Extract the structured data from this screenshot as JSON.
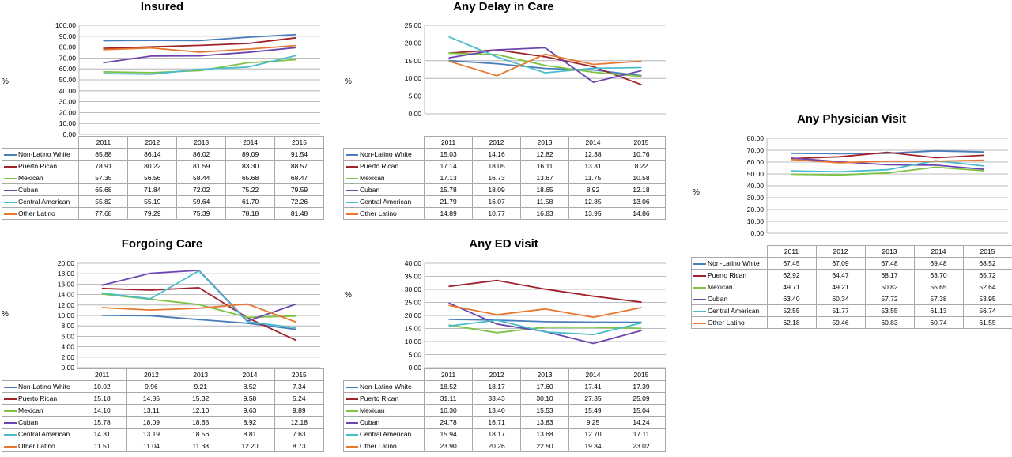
{
  "colors": {
    "Non-Latino White": "#4a7ebb",
    "Puerto Rican": "#a0232b",
    "Mexican": "#7dc242",
    "Cuban": "#6b45b0",
    "Central American": "#4bbccc",
    "Other Latino": "#e8772e"
  },
  "chart_data": [
    {
      "id": "insured",
      "type": "line",
      "title": "Insured",
      "ylabel": "%",
      "categories": [
        "2011",
        "2012",
        "2013",
        "2014",
        "2015"
      ],
      "ylim": [
        0,
        100
      ],
      "ystep": 10,
      "yticks": [
        "0.00",
        "10.00",
        "20.00",
        "30.00",
        "40.00",
        "50.00",
        "60.00",
        "70.00",
        "80.00",
        "90.00",
        "100.00"
      ],
      "series": [
        {
          "name": "Non-Latino White",
          "values": [
            85.88,
            86.14,
            86.02,
            89.09,
            91.54
          ],
          "labels": [
            "85.88",
            "86.14",
            "86.02",
            "89.09",
            "91.54"
          ]
        },
        {
          "name": "Puerto Rican",
          "values": [
            78.91,
            80.22,
            81.59,
            83.3,
            88.57
          ],
          "labels": [
            "78.91",
            "80.22",
            "81.59",
            "83.30",
            "88.57"
          ]
        },
        {
          "name": "Mexican",
          "values": [
            57.35,
            56.56,
            58.44,
            65.68,
            68.47
          ],
          "labels": [
            "57.35",
            "56.56",
            "58.44",
            "65.68",
            "68.47"
          ]
        },
        {
          "name": "Cuban",
          "values": [
            65.68,
            71.84,
            72.02,
            75.22,
            79.59
          ],
          "labels": [
            "65.68",
            "71.84",
            "72.02",
            "75.22",
            "79.59"
          ]
        },
        {
          "name": "Central American",
          "values": [
            55.82,
            55.19,
            59.64,
            61.7,
            72.26
          ],
          "labels": [
            "55.82",
            "55.19",
            "59.64",
            "61.70",
            "72.26"
          ]
        },
        {
          "name": "Other Latino",
          "values": [
            77.68,
            79.29,
            75.39,
            78.18,
            81.48
          ],
          "labels": [
            "77.68",
            "79.29",
            "75.39",
            "78.18",
            "81.48"
          ]
        }
      ]
    },
    {
      "id": "delay",
      "type": "line",
      "title": "Any Delay in Care",
      "ylabel": "%",
      "categories": [
        "2011",
        "2012",
        "2013",
        "2014",
        "2015"
      ],
      "ylim": [
        0,
        25
      ],
      "ystep": 5,
      "yticks": [
        "0.00",
        "5.00",
        "10.00",
        "15.00",
        "20.00",
        "25.00"
      ],
      "series": [
        {
          "name": "Non-Latino White",
          "values": [
            15.03,
            14.16,
            12.82,
            12.38,
            10.76
          ],
          "labels": [
            "15.03",
            "14.16",
            "12.82",
            "12.38",
            "10.76"
          ]
        },
        {
          "name": "Puerto Rican",
          "values": [
            17.14,
            18.05,
            16.11,
            13.31,
            8.22
          ],
          "labels": [
            "17.14",
            "18.05",
            "16.11",
            "13.31",
            "8.22"
          ]
        },
        {
          "name": "Mexican",
          "values": [
            17.13,
            16.73,
            13.67,
            11.75,
            10.58
          ],
          "labels": [
            "17.13",
            "16.73",
            "13.67",
            "11.75",
            "10.58"
          ]
        },
        {
          "name": "Cuban",
          "values": [
            15.78,
            18.09,
            18.65,
            8.92,
            12.18
          ],
          "labels": [
            "15.78",
            "18.09",
            "18.65",
            "8.92",
            "12.18"
          ]
        },
        {
          "name": "Central American",
          "values": [
            21.79,
            16.07,
            11.58,
            12.85,
            13.06
          ],
          "labels": [
            "21.79",
            "16.07",
            "11.58",
            "12.85",
            "13.06"
          ]
        },
        {
          "name": "Other Latino",
          "values": [
            14.89,
            10.77,
            16.83,
            13.95,
            14.86
          ],
          "labels": [
            "14.89",
            "10.77",
            "16.83",
            "13.95",
            "14.86"
          ]
        }
      ]
    },
    {
      "id": "physician",
      "type": "line",
      "title": "Any Physician Visit",
      "ylabel": "%",
      "categories": [
        "2011",
        "2012",
        "2013",
        "2014",
        "2015"
      ],
      "ylim": [
        0,
        80
      ],
      "ystep": 10,
      "yticks": [
        "0.00",
        "10.00",
        "20.00",
        "30.00",
        "40.00",
        "50.00",
        "60.00",
        "70.00",
        "80.00"
      ],
      "series": [
        {
          "name": "Non-Latino White",
          "values": [
            67.45,
            67.09,
            67.48,
            69.48,
            68.52
          ],
          "labels": [
            "67.45",
            "67.09",
            "67.48",
            "69.48",
            "68.52"
          ]
        },
        {
          "name": "Puerto Rican",
          "values": [
            62.92,
            64.47,
            68.17,
            63.7,
            65.72
          ],
          "labels": [
            "62.92",
            "64.47",
            "68.17",
            "63.70",
            "65.72"
          ]
        },
        {
          "name": "Mexican",
          "values": [
            49.71,
            49.21,
            50.82,
            55.65,
            52.64
          ],
          "labels": [
            "49.71",
            "49.21",
            "50.82",
            "55.65",
            "52.64"
          ]
        },
        {
          "name": "Cuban",
          "values": [
            63.4,
            60.34,
            57.72,
            57.38,
            53.95
          ],
          "labels": [
            "63.40",
            "60.34",
            "57.72",
            "57.38",
            "53.95"
          ]
        },
        {
          "name": "Central American",
          "values": [
            52.55,
            51.77,
            53.55,
            61.13,
            56.74
          ],
          "labels": [
            "52.55",
            "51.77",
            "53.55",
            "61.13",
            "56.74"
          ]
        },
        {
          "name": "Other Latino",
          "values": [
            62.18,
            59.46,
            60.83,
            60.74,
            61.55
          ],
          "labels": [
            "62.18",
            "59.46",
            "60.83",
            "60.74",
            "61.55"
          ]
        }
      ]
    },
    {
      "id": "forgoing",
      "type": "line",
      "title": "Forgoing Care",
      "ylabel": "%",
      "categories": [
        "2011",
        "2012",
        "2013",
        "2014",
        "2015"
      ],
      "ylim": [
        0,
        20
      ],
      "ystep": 2,
      "yticks": [
        "0.00",
        "2.00",
        "4.00",
        "6.00",
        "8.00",
        "10.00",
        "12.00",
        "14.00",
        "16.00",
        "18.00",
        "20.00"
      ],
      "series": [
        {
          "name": "Non-Latino White",
          "values": [
            10.02,
            9.96,
            9.21,
            8.52,
            7.34
          ],
          "labels": [
            "10.02",
            "9.96",
            "9.21",
            "8.52",
            "7.34"
          ]
        },
        {
          "name": "Puerto Rican",
          "values": [
            15.18,
            14.85,
            15.32,
            9.58,
            5.24
          ],
          "labels": [
            "15.18",
            "14.85",
            "15.32",
            "9.58",
            "5.24"
          ]
        },
        {
          "name": "Mexican",
          "values": [
            14.1,
            13.11,
            12.1,
            9.63,
            9.89
          ],
          "labels": [
            "14.10",
            "13.11",
            "12.10",
            "9.63",
            "9.89"
          ]
        },
        {
          "name": "Cuban",
          "values": [
            15.78,
            18.09,
            18.65,
            8.92,
            12.18
          ],
          "labels": [
            "15.78",
            "18.09",
            "18.65",
            "8.92",
            "12.18"
          ]
        },
        {
          "name": "Central American",
          "values": [
            14.31,
            13.19,
            18.56,
            8.81,
            7.63
          ],
          "labels": [
            "14.31",
            "13.19",
            "18.56",
            "8.81",
            "7.63"
          ]
        },
        {
          "name": "Other Latino",
          "values": [
            11.51,
            11.04,
            11.38,
            12.2,
            8.73
          ],
          "labels": [
            "11.51",
            "11.04",
            "11.38",
            "12.20",
            "8.73"
          ]
        }
      ]
    },
    {
      "id": "ed",
      "type": "line",
      "title": "Any ED visit",
      "ylabel": "%",
      "categories": [
        "2011",
        "2012",
        "2013",
        "2014",
        "2015"
      ],
      "ylim": [
        0,
        40
      ],
      "ystep": 5,
      "yticks": [
        "0.00",
        "5.00",
        "10.00",
        "15.00",
        "20.00",
        "25.00",
        "30.00",
        "35.00",
        "40.00"
      ],
      "series": [
        {
          "name": "Non-Latino White",
          "values": [
            18.52,
            18.17,
            17.6,
            17.41,
            17.39
          ],
          "labels": [
            "18.52",
            "18.17",
            "17.60",
            "17.41",
            "17.39"
          ]
        },
        {
          "name": "Puerto Rican",
          "values": [
            31.11,
            33.43,
            30.1,
            27.35,
            25.09
          ],
          "labels": [
            "31.11",
            "33.43",
            "30.10",
            "27.35",
            "25.09"
          ]
        },
        {
          "name": "Mexican",
          "values": [
            16.3,
            13.4,
            15.53,
            15.49,
            15.04
          ],
          "labels": [
            "16.30",
            "13.40",
            "15.53",
            "15.49",
            "15.04"
          ]
        },
        {
          "name": "Cuban",
          "values": [
            24.78,
            16.71,
            13.83,
            9.25,
            14.24
          ],
          "labels": [
            "24.78",
            "16.71",
            "13.83",
            "9.25",
            "14.24"
          ]
        },
        {
          "name": "Central American",
          "values": [
            15.94,
            18.17,
            13.68,
            12.7,
            17.11
          ],
          "labels": [
            "15.94",
            "18.17",
            "13.68",
            "12.70",
            "17.11"
          ]
        },
        {
          "name": "Other Latino",
          "values": [
            23.9,
            20.26,
            22.5,
            19.34,
            23.02
          ],
          "labels": [
            "23.90",
            "20.26",
            "22.50",
            "19.34",
            "23.02"
          ]
        }
      ]
    }
  ]
}
